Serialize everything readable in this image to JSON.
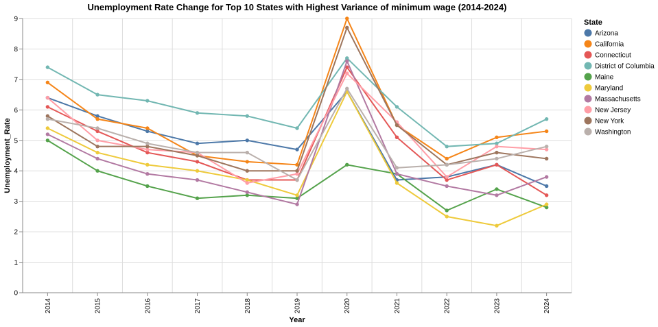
{
  "chart_data": {
    "type": "line",
    "title": "Unemployment Rate Change for Top 10 States with Highest Variance of minimum wage (2014-2024)",
    "xlabel": "Year",
    "ylabel": "Unemployment_Rate",
    "legend_title": "State",
    "legend_position": "right",
    "grid": true,
    "ylim": [
      0,
      9
    ],
    "yticks": [
      0,
      1,
      2,
      3,
      4,
      5,
      6,
      7,
      8,
      9
    ],
    "x": [
      "2014",
      "2015",
      "2016",
      "2017",
      "2018",
      "2019",
      "2020",
      "2021",
      "2022",
      "2023",
      "2024"
    ],
    "series": [
      {
        "name": "Arizona",
        "color": "#4c78a8",
        "values": [
          6.4,
          5.8,
          5.3,
          4.9,
          5.0,
          4.7,
          6.6,
          3.7,
          3.8,
          4.2,
          3.5
        ]
      },
      {
        "name": "California",
        "color": "#f58518",
        "values": [
          6.9,
          5.7,
          5.4,
          4.5,
          4.3,
          4.2,
          9.0,
          5.5,
          4.4,
          5.1,
          5.3
        ]
      },
      {
        "name": "Connecticut",
        "color": "#e45756",
        "values": [
          6.1,
          5.3,
          4.6,
          4.3,
          3.7,
          3.7,
          7.4,
          5.1,
          3.7,
          4.2,
          3.2
        ]
      },
      {
        "name": "District of Columbia",
        "color": "#72b7b2",
        "values": [
          7.4,
          6.5,
          6.3,
          5.9,
          5.8,
          5.4,
          7.7,
          6.1,
          4.8,
          4.9,
          5.7
        ]
      },
      {
        "name": "Maine",
        "color": "#54a24b",
        "values": [
          5.0,
          4.0,
          3.5,
          3.1,
          3.2,
          3.1,
          4.2,
          3.9,
          2.7,
          3.4,
          2.8
        ]
      },
      {
        "name": "Maryland",
        "color": "#eeca3b",
        "values": [
          5.4,
          4.6,
          4.2,
          4.0,
          3.7,
          3.2,
          6.6,
          3.6,
          2.5,
          2.2,
          2.9
        ]
      },
      {
        "name": "Massachusetts",
        "color": "#b279a2",
        "values": [
          5.2,
          4.4,
          3.9,
          3.7,
          3.3,
          2.9,
          7.6,
          3.9,
          3.5,
          3.2,
          3.8
        ]
      },
      {
        "name": "New Jersey",
        "color": "#ff9da6",
        "values": [
          6.4,
          5.0,
          4.7,
          4.6,
          3.6,
          3.9,
          7.2,
          5.6,
          3.8,
          4.8,
          4.7
        ]
      },
      {
        "name": "New York",
        "color": "#9d755d",
        "values": [
          5.8,
          4.8,
          4.8,
          4.5,
          4.0,
          4.0,
          8.7,
          5.5,
          4.2,
          4.6,
          4.4
        ]
      },
      {
        "name": "Washington",
        "color": "#bab0ac",
        "values": [
          5.7,
          5.4,
          4.9,
          4.6,
          4.6,
          3.7,
          6.7,
          4.1,
          4.2,
          4.4,
          4.8
        ]
      }
    ]
  }
}
